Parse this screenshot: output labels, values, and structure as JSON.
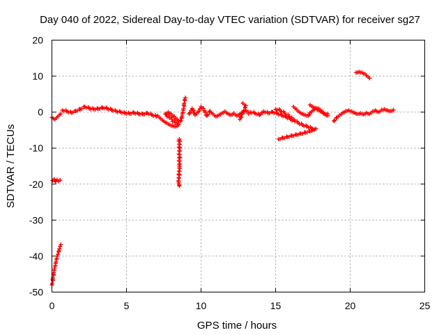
{
  "chart_data": {
    "type": "scatter",
    "title": "Day 040 of 2022, Sidereal Day-to-day VTEC variation (SDTVAR) for receiver sg27",
    "xlabel": "GPS time / hours",
    "ylabel": "SDTVAR / TECUs",
    "xlim": [
      0,
      25
    ],
    "ylim": [
      -50,
      20
    ],
    "xticks": [
      0,
      5,
      10,
      15,
      20,
      25
    ],
    "yticks": [
      -50,
      -40,
      -30,
      -20,
      -10,
      0,
      10,
      20
    ],
    "grid": true,
    "marker": "plus",
    "color": "#ff0000",
    "series": [
      {
        "name": "sg27",
        "segments": [
          [
            [
              0.0,
              -1.5
            ],
            [
              0.1,
              -1.8
            ],
            [
              0.2,
              -2.0
            ],
            [
              0.3,
              -1.6
            ],
            [
              0.4,
              -1.2
            ],
            [
              0.5,
              -0.8
            ],
            [
              0.6,
              -0.5
            ]
          ],
          [
            [
              0.05,
              -19.0
            ],
            [
              0.15,
              -18.6
            ],
            [
              0.25,
              -19.3
            ],
            [
              0.35,
              -18.8
            ],
            [
              0.45,
              -19.2
            ],
            [
              0.55,
              -18.9
            ]
          ],
          [
            [
              0.0,
              -48.0
            ],
            [
              0.05,
              -46.5
            ],
            [
              0.1,
              -45.0
            ],
            [
              0.15,
              -44.0
            ],
            [
              0.2,
              -43.0
            ],
            [
              0.25,
              -42.0
            ],
            [
              0.3,
              -41.0
            ],
            [
              0.35,
              -40.0
            ],
            [
              0.4,
              -39.5
            ],
            [
              0.45,
              -38.8
            ],
            [
              0.5,
              -38.0
            ],
            [
              0.55,
              -37.3
            ],
            [
              0.6,
              -36.8
            ]
          ],
          [
            [
              0.7,
              0.5
            ],
            [
              1.0,
              0.2
            ],
            [
              1.3,
              -0.2
            ],
            [
              1.6,
              0.3
            ],
            [
              1.9,
              0.8
            ],
            [
              2.2,
              1.5
            ],
            [
              2.5,
              1.0
            ],
            [
              2.8,
              0.8
            ],
            [
              3.1,
              0.9
            ],
            [
              3.4,
              1.2
            ],
            [
              3.7,
              1.0
            ],
            [
              4.0,
              0.6
            ],
            [
              4.3,
              0.2
            ],
            [
              4.6,
              0.0
            ],
            [
              4.9,
              -0.3
            ],
            [
              5.2,
              -0.4
            ],
            [
              5.5,
              -0.2
            ],
            [
              5.8,
              -0.5
            ],
            [
              6.1,
              -0.6
            ],
            [
              6.4,
              -0.3
            ],
            [
              6.7,
              -0.8
            ],
            [
              7.0,
              -1.2
            ]
          ],
          [
            [
              7.1,
              -1.0
            ],
            [
              7.3,
              -1.8
            ],
            [
              7.5,
              -2.5
            ],
            [
              7.7,
              -3.0
            ],
            [
              7.9,
              -3.5
            ],
            [
              8.1,
              -3.8
            ],
            [
              8.3,
              -4.0
            ],
            [
              8.5,
              -3.5
            ],
            [
              7.6,
              -0.5
            ],
            [
              7.8,
              0.0
            ],
            [
              8.0,
              -0.5
            ],
            [
              8.2,
              -1.2
            ],
            [
              8.4,
              -2.0
            ],
            [
              8.6,
              -2.6
            ],
            [
              8.7,
              -1.5
            ],
            [
              8.75,
              -0.5
            ],
            [
              8.8,
              0.5
            ],
            [
              8.85,
              2.0
            ],
            [
              8.9,
              3.5
            ],
            [
              8.95,
              4.0
            ]
          ],
          [
            [
              8.5,
              -8.0
            ],
            [
              8.55,
              -7.5
            ],
            [
              8.55,
              -15.0
            ],
            [
              8.5,
              -19.7
            ],
            [
              8.55,
              -20.5
            ]
          ],
          [
            [
              9.2,
              -0.5
            ],
            [
              9.4,
              1.0
            ],
            [
              9.6,
              -0.8
            ],
            [
              9.8,
              0.0
            ],
            [
              10.0,
              1.5
            ],
            [
              10.2,
              0.5
            ],
            [
              10.4,
              -1.0
            ],
            [
              10.6,
              0.3
            ],
            [
              10.8,
              -0.5
            ],
            [
              11.0,
              -1.2
            ],
            [
              11.2,
              -0.8
            ],
            [
              11.4,
              -0.3
            ],
            [
              11.6,
              0.2
            ],
            [
              11.8,
              -0.4
            ],
            [
              12.0,
              -0.8
            ],
            [
              12.2,
              -0.3
            ],
            [
              12.4,
              -1.0
            ],
            [
              12.6,
              -0.5
            ],
            [
              12.8,
              0.0
            ],
            [
              13.0,
              0.5
            ],
            [
              13.2,
              -0.5
            ]
          ],
          [
            [
              12.8,
              2.5
            ],
            [
              13.0,
              1.8
            ],
            [
              12.6,
              -2.0
            ],
            [
              12.7,
              -1.5
            ]
          ],
          [
            [
              13.3,
              0.0
            ],
            [
              13.6,
              -0.3
            ],
            [
              13.9,
              -0.8
            ],
            [
              14.2,
              0.2
            ],
            [
              14.5,
              -0.3
            ],
            [
              14.8,
              0.0
            ],
            [
              15.1,
              -0.4
            ],
            [
              15.4,
              -0.9
            ],
            [
              15.7,
              -1.4
            ],
            [
              16.0,
              -2.0
            ],
            [
              16.3,
              -2.5
            ]
          ],
          [
            [
              15.0,
              0.8
            ],
            [
              15.3,
              0.5
            ],
            [
              15.6,
              -0.3
            ],
            [
              15.9,
              -1.2
            ],
            [
              16.2,
              -2.2
            ],
            [
              16.5,
              -3.0
            ],
            [
              16.8,
              -3.6
            ],
            [
              17.1,
              -4.0
            ],
            [
              17.4,
              -4.5
            ],
            [
              17.6,
              -4.8
            ]
          ],
          [
            [
              15.2,
              -7.5
            ],
            [
              15.5,
              -7.2
            ],
            [
              15.8,
              -6.9
            ],
            [
              16.1,
              -6.6
            ],
            [
              16.4,
              -6.3
            ],
            [
              16.7,
              -6.0
            ],
            [
              17.0,
              -5.7
            ],
            [
              17.3,
              -5.3
            ],
            [
              17.5,
              -5.0
            ],
            [
              17.7,
              -4.6
            ]
          ],
          [
            [
              16.2,
              1.5
            ],
            [
              16.4,
              0.8
            ],
            [
              16.6,
              0.0
            ],
            [
              16.8,
              -0.5
            ],
            [
              17.0,
              -0.8
            ],
            [
              17.2,
              -1.0
            ],
            [
              17.3,
              -0.2
            ],
            [
              17.5,
              0.5
            ],
            [
              17.7,
              1.2
            ],
            [
              17.9,
              1.0
            ],
            [
              18.1,
              0.3
            ],
            [
              18.3,
              -0.4
            ],
            [
              18.5,
              -0.5
            ]
          ],
          [
            [
              17.3,
              2.0
            ],
            [
              17.5,
              1.5
            ],
            [
              17.7,
              1.0
            ],
            [
              17.9,
              0.5
            ],
            [
              18.1,
              0.0
            ],
            [
              18.3,
              -0.6
            ],
            [
              18.5,
              -1.0
            ]
          ],
          [
            [
              18.9,
              -2.5
            ],
            [
              19.1,
              -1.5
            ],
            [
              19.3,
              -0.8
            ],
            [
              19.5,
              -0.2
            ],
            [
              19.7,
              0.3
            ],
            [
              19.9,
              0.5
            ],
            [
              20.1,
              0.2
            ],
            [
              20.3,
              -0.2
            ],
            [
              20.5,
              -0.5
            ],
            [
              20.7,
              -0.3
            ],
            [
              20.9,
              -0.6
            ],
            [
              21.1,
              -0.2
            ],
            [
              21.3,
              -0.5
            ],
            [
              21.5,
              0.2
            ],
            [
              21.7,
              0.5
            ],
            [
              21.9,
              0.0
            ],
            [
              22.1,
              0.6
            ],
            [
              22.3,
              0.8
            ],
            [
              22.5,
              0.5
            ],
            [
              22.7,
              0.3
            ],
            [
              22.9,
              0.6
            ]
          ],
          [
            [
              20.4,
              11.0
            ],
            [
              20.6,
              11.2
            ],
            [
              20.8,
              11.0
            ],
            [
              21.0,
              10.6
            ],
            [
              21.2,
              9.8
            ],
            [
              21.3,
              9.4
            ]
          ]
        ]
      }
    ]
  }
}
